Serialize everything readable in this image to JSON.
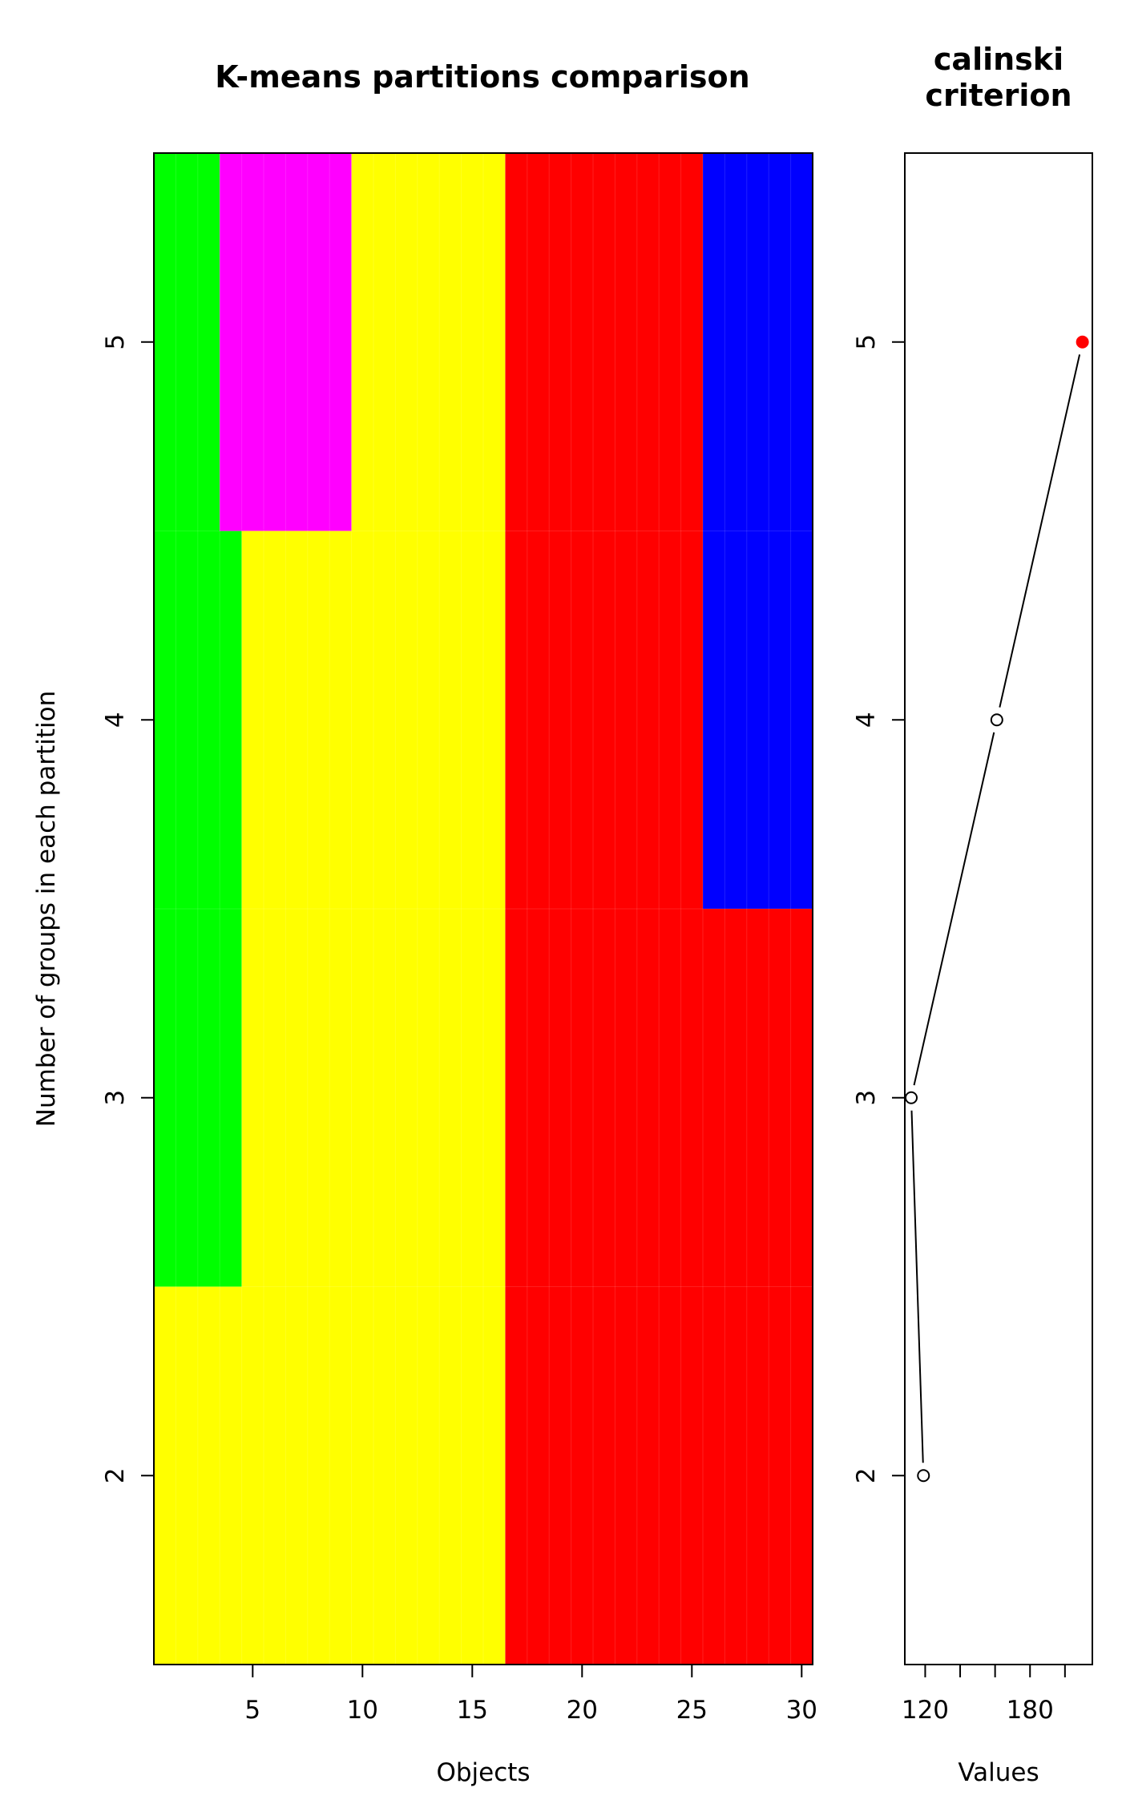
{
  "chart_data": [
    {
      "type": "heatmap",
      "title": "K-means partitions comparison",
      "xlabel": "Objects",
      "ylabel": "Number of groups in each partition",
      "xlim": [
        0.5,
        30.5
      ],
      "ylim": [
        1.5,
        5.5
      ],
      "xticks": [
        5,
        10,
        15,
        20,
        25,
        30
      ],
      "yticks": [
        2,
        3,
        4,
        5
      ],
      "rows": [
        {
          "k": 2,
          "segments": [
            {
              "from": 1,
              "to": 16,
              "color": "#ffff00"
            },
            {
              "from": 17,
              "to": 30,
              "color": "#ff0000"
            }
          ]
        },
        {
          "k": 3,
          "segments": [
            {
              "from": 1,
              "to": 4,
              "color": "#00ff00"
            },
            {
              "from": 5,
              "to": 16,
              "color": "#ffff00"
            },
            {
              "from": 17,
              "to": 30,
              "color": "#ff0000"
            }
          ]
        },
        {
          "k": 4,
          "segments": [
            {
              "from": 1,
              "to": 4,
              "color": "#00ff00"
            },
            {
              "from": 5,
              "to": 16,
              "color": "#ffff00"
            },
            {
              "from": 17,
              "to": 25,
              "color": "#ff0000"
            },
            {
              "from": 26,
              "to": 30,
              "color": "#0000ff"
            }
          ]
        },
        {
          "k": 5,
          "segments": [
            {
              "from": 1,
              "to": 3,
              "color": "#00ff00"
            },
            {
              "from": 4,
              "to": 9,
              "color": "#ff00ff"
            },
            {
              "from": 10,
              "to": 16,
              "color": "#ffff00"
            },
            {
              "from": 17,
              "to": 25,
              "color": "#ff0000"
            },
            {
              "from": 26,
              "to": 30,
              "color": "#0000ff"
            }
          ]
        }
      ]
    },
    {
      "type": "line",
      "title": "calinski\ncriterion",
      "xlabel": "Values",
      "xlim": [
        112,
        212
      ],
      "ylim": [
        1.5,
        5.5
      ],
      "xticks": [
        120,
        140,
        160,
        180,
        200
      ],
      "xtick_labels": [
        "120",
        "",
        "",
        "180",
        ""
      ],
      "yticks": [
        2,
        3,
        4,
        5
      ],
      "points": [
        {
          "k": 2,
          "value": 119
        },
        {
          "k": 3,
          "value": 112
        },
        {
          "k": 4,
          "value": 161
        },
        {
          "k": 5,
          "value": 210
        }
      ],
      "best_k": 5,
      "best_color": "#ff0000"
    }
  ]
}
